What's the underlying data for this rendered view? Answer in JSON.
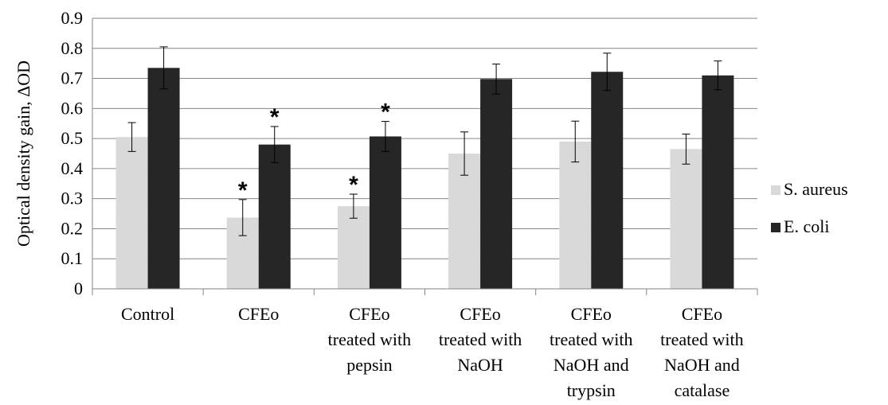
{
  "chart_data": {
    "type": "bar",
    "title": "",
    "xlabel": "",
    "ylabel": "Optical density gain, ΔOD",
    "ylim": [
      0,
      0.9
    ],
    "yticks": [
      "0",
      "0.1",
      "0.2",
      "0.3",
      "0.4",
      "0.5",
      "0.6",
      "0.7",
      "0.8",
      "0.9"
    ],
    "grid": true,
    "legend_position": "right",
    "categories": [
      [
        "Control"
      ],
      [
        "CFEo"
      ],
      [
        "CFEo",
        "treated with",
        "pepsin"
      ],
      [
        "CFEo",
        "treated with",
        "NaOH"
      ],
      [
        "CFEo",
        "treated with",
        "NaOH and",
        "trypsin"
      ],
      [
        "CFEo",
        "treated with",
        "NaOH and",
        "catalase"
      ]
    ],
    "series": [
      {
        "name": "S. aureus",
        "color": "#d9d9d9",
        "values": [
          0.505,
          0.237,
          0.275,
          0.45,
          0.49,
          0.465
        ],
        "errors": [
          0.048,
          0.06,
          0.04,
          0.072,
          0.068,
          0.05
        ],
        "significant": [
          false,
          true,
          true,
          false,
          false,
          false
        ]
      },
      {
        "name": "E. coli",
        "color": "#262626",
        "values": [
          0.735,
          0.48,
          0.507,
          0.698,
          0.722,
          0.71
        ],
        "errors": [
          0.07,
          0.06,
          0.05,
          0.05,
          0.062,
          0.048
        ],
        "significant": [
          false,
          true,
          true,
          false,
          false,
          false
        ]
      }
    ],
    "significance_marker": "*"
  }
}
